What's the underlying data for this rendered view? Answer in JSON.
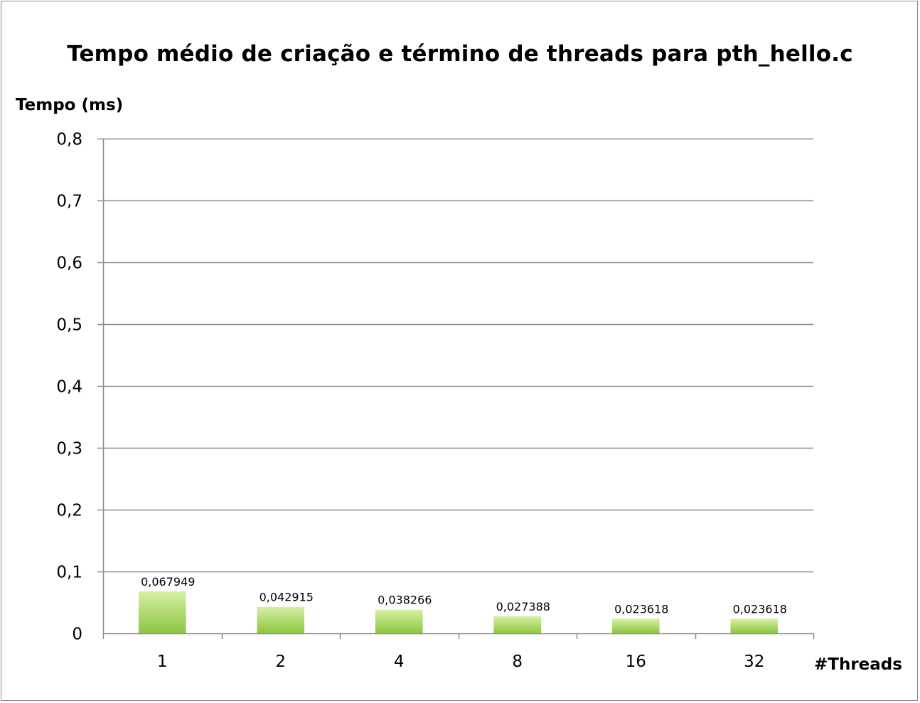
{
  "chart_data": {
    "type": "bar",
    "title": "Tempo médio de criação e término de threads para pth_hello.c",
    "xlabel": "#Threads",
    "ylabel": "Tempo (ms)",
    "categories": [
      "1",
      "2",
      "4",
      "8",
      "16",
      "32"
    ],
    "values": [
      0.067949,
      0.042915,
      0.038266,
      0.027388,
      0.023618,
      0.023618
    ],
    "data_labels": [
      "0,067949",
      "0,042915",
      "0,038266",
      "0,027388",
      "0,023618",
      "0,023618"
    ],
    "ylim": [
      0,
      0.8
    ],
    "yticks": [
      0,
      0.1,
      0.2,
      0.3,
      0.4,
      0.5,
      0.6,
      0.7,
      0.8
    ],
    "ytick_labels": [
      "0",
      "0,1",
      "0,2",
      "0,3",
      "0,4",
      "0,5",
      "0,6",
      "0,7",
      "0,8"
    ],
    "grid": true,
    "legend": "none",
    "colors": {
      "bar_top": "#d6f0a4",
      "bar_bottom": "#8cc63f",
      "grid": "#8c8c8c",
      "axis": "#8c8c8c"
    }
  }
}
